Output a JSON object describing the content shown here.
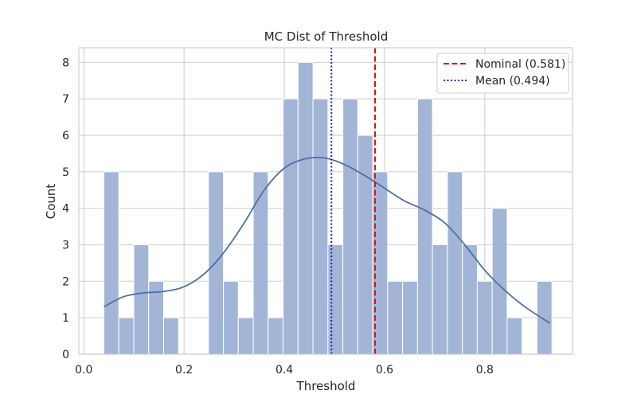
{
  "chart_data": {
    "type": "bar",
    "title": "MC Dist of Threshold",
    "xlabel": "Threshold",
    "ylabel": "Count",
    "xlim": [
      -0.01,
      0.975
    ],
    "ylim": [
      0,
      8.4
    ],
    "xticks": [
      0.0,
      0.2,
      0.4,
      0.6,
      0.8
    ],
    "xtick_labels": [
      "0.0",
      "0.2",
      "0.4",
      "0.6",
      "0.8"
    ],
    "yticks": [
      0,
      1,
      2,
      3,
      4,
      5,
      6,
      7,
      8
    ],
    "ytick_labels": [
      "0",
      "1",
      "2",
      "3",
      "4",
      "5",
      "6",
      "7",
      "8"
    ],
    "grid": true,
    "bins": {
      "start": 0.04,
      "width": 0.0298,
      "counts": [
        5,
        1,
        3,
        2,
        1,
        0,
        0,
        5,
        2,
        1,
        5,
        1,
        7,
        8,
        7,
        3,
        7,
        6,
        5,
        2,
        2,
        7,
        3,
        5,
        3,
        2,
        4,
        1,
        0,
        2
      ]
    },
    "kde": {
      "x": [
        0.04,
        0.08,
        0.12,
        0.16,
        0.2,
        0.24,
        0.28,
        0.32,
        0.36,
        0.4,
        0.44,
        0.48,
        0.52,
        0.56,
        0.6,
        0.64,
        0.68,
        0.72,
        0.76,
        0.8,
        0.84,
        0.88,
        0.93
      ],
      "y": [
        1.3,
        1.58,
        1.68,
        1.72,
        1.85,
        2.2,
        2.8,
        3.6,
        4.5,
        5.1,
        5.35,
        5.38,
        5.2,
        4.9,
        4.55,
        4.2,
        3.95,
        3.6,
        3.0,
        2.3,
        1.75,
        1.3,
        0.85
      ]
    },
    "vlines": [
      {
        "name": "Nominal (0.581)",
        "x": 0.581,
        "style": "dashed",
        "color": "#dd1111"
      },
      {
        "name": "Mean (0.494)",
        "x": 0.494,
        "style": "dotted",
        "color": "#1a1adf"
      }
    ],
    "legend_position": "top-right",
    "colors": {
      "bar_fill": "#a3b5d6",
      "bar_edge": "#ffffff",
      "kde_line": "#4c6fa8",
      "grid": "#d3d3d3",
      "frame": "#cfcfcf"
    }
  }
}
